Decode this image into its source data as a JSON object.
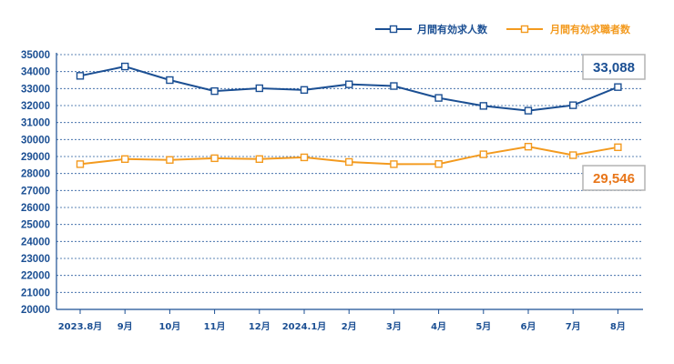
{
  "chart_data": {
    "type": "line",
    "title": "",
    "xlabel": "",
    "ylabel": "",
    "categories": [
      "2023.8月",
      "9月",
      "10月",
      "11月",
      "12月",
      "2024.1月",
      "2月",
      "3月",
      "4月",
      "5月",
      "6月",
      "7月",
      "8月"
    ],
    "ylim": [
      20000,
      35000
    ],
    "yticks": [
      20000,
      21000,
      22000,
      23000,
      24000,
      25000,
      26000,
      27000,
      28000,
      29000,
      30000,
      31000,
      32000,
      33000,
      34000,
      35000
    ],
    "grid": "horizontal-dashed",
    "legend_position": "top-right",
    "series": [
      {
        "name": "月間有効求人数",
        "color": "#1b4f93",
        "marker": "square-open",
        "values": [
          33750,
          34300,
          33500,
          32850,
          33020,
          32920,
          33250,
          33150,
          32450,
          31980,
          31700,
          32020,
          33088
        ]
      },
      {
        "name": "月間有効求職者数",
        "color": "#f39a1e",
        "marker": "square-open",
        "values": [
          28550,
          28850,
          28800,
          28900,
          28850,
          28950,
          28680,
          28550,
          28560,
          29130,
          29580,
          29080,
          29546
        ]
      }
    ],
    "callouts": [
      {
        "text": "33,088",
        "series": 0,
        "color": "#1b4f93"
      },
      {
        "text": "29,546",
        "series": 1,
        "color": "#e8761a"
      }
    ]
  }
}
